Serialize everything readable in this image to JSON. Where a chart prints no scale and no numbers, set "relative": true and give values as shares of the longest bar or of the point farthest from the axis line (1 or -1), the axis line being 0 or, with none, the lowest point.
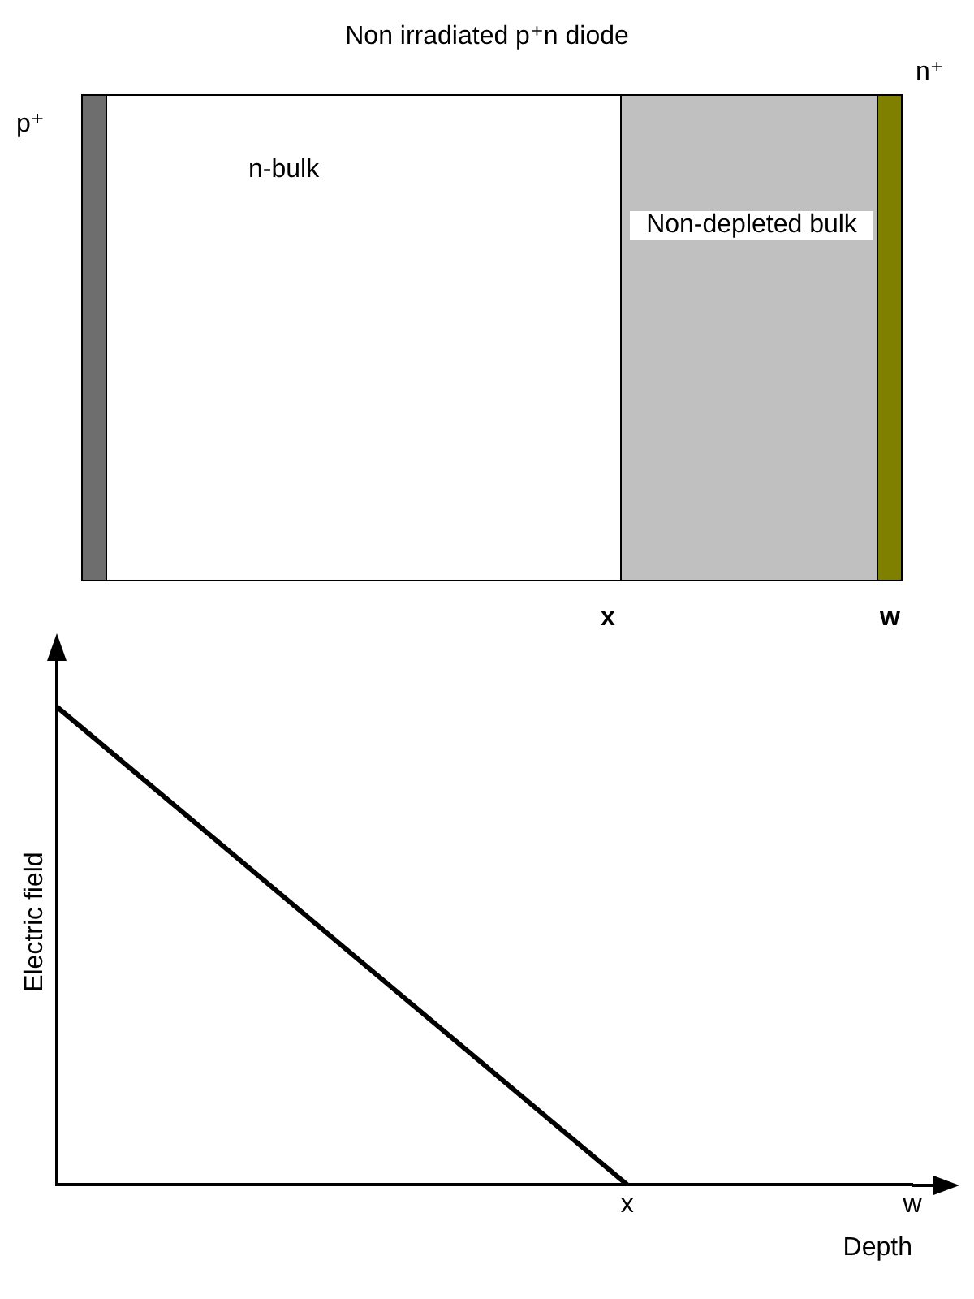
{
  "chart_data": {
    "type": "line",
    "title": "Non irradiated p⁺n diode",
    "xlabel": "Depth",
    "ylabel": "Electric field",
    "relative": true,
    "categories": [
      null,
      null,
      "x",
      "w"
    ],
    "tick_labels": "x",
    "series": [
      {
        "color": "#000000",
        "values": [
          1,
          null,
          0,
          null
        ]
      }
    ],
    "grid": false,
    "legend": false,
    "line_style": "solid",
    "annotations": [
      "p⁺",
      "n⁺",
      "n-bulk",
      "Non-depleted bulk",
      "x",
      "w"
    ]
  }
}
